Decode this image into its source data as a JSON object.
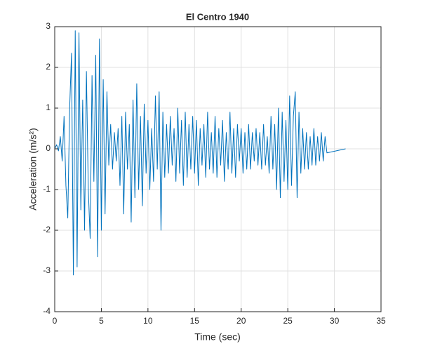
{
  "chart_data": {
    "type": "line",
    "title": "El Centro 1940",
    "xlabel": "Time (sec)",
    "ylabel": "Acceleration (m/s²)",
    "color": "#0072bd",
    "grid": true,
    "xlim": [
      0,
      35
    ],
    "xticks": [
      0,
      5,
      10,
      15,
      20,
      25,
      30,
      35
    ],
    "ylim": [
      -4,
      3
    ],
    "yticks": [
      -4,
      -3,
      -2,
      -1,
      0,
      1,
      2,
      3
    ],
    "x": [
      0,
      0.2,
      0.4,
      0.6,
      0.8,
      1,
      1.2,
      1.4,
      1.6,
      1.8,
      2,
      2.2,
      2.4,
      2.6,
      2.8,
      3,
      3.2,
      3.4,
      3.6,
      3.8,
      4,
      4.2,
      4.4,
      4.6,
      4.8,
      5,
      5.2,
      5.4,
      5.6,
      5.8,
      6,
      6.2,
      6.4,
      6.6,
      6.8,
      7,
      7.2,
      7.4,
      7.6,
      7.8,
      8,
      8.2,
      8.4,
      8.6,
      8.8,
      9,
      9.2,
      9.4,
      9.6,
      9.8,
      10,
      10.2,
      10.4,
      10.6,
      10.8,
      11,
      11.2,
      11.4,
      11.6,
      11.8,
      12,
      12.2,
      12.4,
      12.6,
      12.8,
      13,
      13.2,
      13.4,
      13.6,
      13.8,
      14,
      14.2,
      14.4,
      14.6,
      14.8,
      15,
      15.2,
      15.4,
      15.6,
      15.8,
      16,
      16.2,
      16.4,
      16.6,
      16.8,
      17,
      17.2,
      17.4,
      17.6,
      17.8,
      18,
      18.2,
      18.4,
      18.6,
      18.8,
      19,
      19.2,
      19.4,
      19.6,
      19.8,
      20,
      20.2,
      20.4,
      20.6,
      20.8,
      21,
      21.2,
      21.4,
      21.6,
      21.8,
      22,
      22.2,
      22.4,
      22.6,
      22.8,
      23,
      23.2,
      23.4,
      23.6,
      23.8,
      24,
      24.2,
      24.4,
      24.6,
      24.8,
      25,
      25.2,
      25.4,
      25.6,
      25.8,
      26,
      26.2,
      26.4,
      26.6,
      26.8,
      27,
      27.2,
      27.4,
      27.6,
      27.8,
      28,
      28.2,
      28.4,
      28.6,
      28.8,
      29,
      29.2,
      31.2
    ],
    "values": [
      0,
      0.1,
      -0.05,
      0.3,
      -0.3,
      0.8,
      -0.9,
      -1.7,
      1.0,
      2.35,
      -3.1,
      2.9,
      -2.9,
      2.85,
      -1.5,
      1.2,
      -2.0,
      1.9,
      -1.0,
      -2.2,
      1.8,
      -0.8,
      2.3,
      -2.65,
      2.7,
      -2.0,
      1.7,
      -1.6,
      1.4,
      -0.4,
      0.6,
      -0.5,
      0.4,
      -0.3,
      0.5,
      -0.9,
      0.8,
      -1.6,
      0.9,
      -0.5,
      0.6,
      -1.8,
      1.2,
      -1.2,
      1.6,
      -1.0,
      0.8,
      -1.4,
      1.1,
      -0.6,
      0.7,
      -1.0,
      0.5,
      -0.8,
      1.3,
      -0.5,
      1.4,
      -2.0,
      0.9,
      -0.7,
      0.6,
      -0.6,
      0.8,
      -0.4,
      0.5,
      -0.8,
      1.0,
      -0.6,
      0.7,
      -0.9,
      0.9,
      -0.7,
      0.6,
      -0.5,
      0.8,
      -0.6,
      0.7,
      -0.9,
      0.5,
      -0.4,
      0.6,
      -0.7,
      0.9,
      -0.5,
      0.4,
      -0.6,
      0.8,
      -0.7,
      0.5,
      -0.4,
      0.7,
      -0.8,
      0.4,
      -0.5,
      0.9,
      -0.6,
      0.5,
      -0.7,
      0.6,
      -0.3,
      0.5,
      -0.6,
      0.4,
      -0.5,
      0.6,
      -0.5,
      0.4,
      -0.3,
      0.5,
      -0.4,
      0.4,
      -0.5,
      0.6,
      -0.4,
      0.3,
      -0.6,
      0.8,
      -0.5,
      0.6,
      -1.0,
      1.0,
      -1.2,
      0.9,
      -0.8,
      0.7,
      -1.0,
      1.3,
      -0.9,
      0.8,
      1.4,
      -1.2,
      0.9,
      -0.6,
      0.5,
      -0.5,
      0.4,
      -0.5,
      0.3,
      -0.4,
      0.5,
      -0.4,
      0.3,
      -0.3,
      0.4,
      -0.3,
      0.3,
      -0.1,
      0
    ]
  }
}
